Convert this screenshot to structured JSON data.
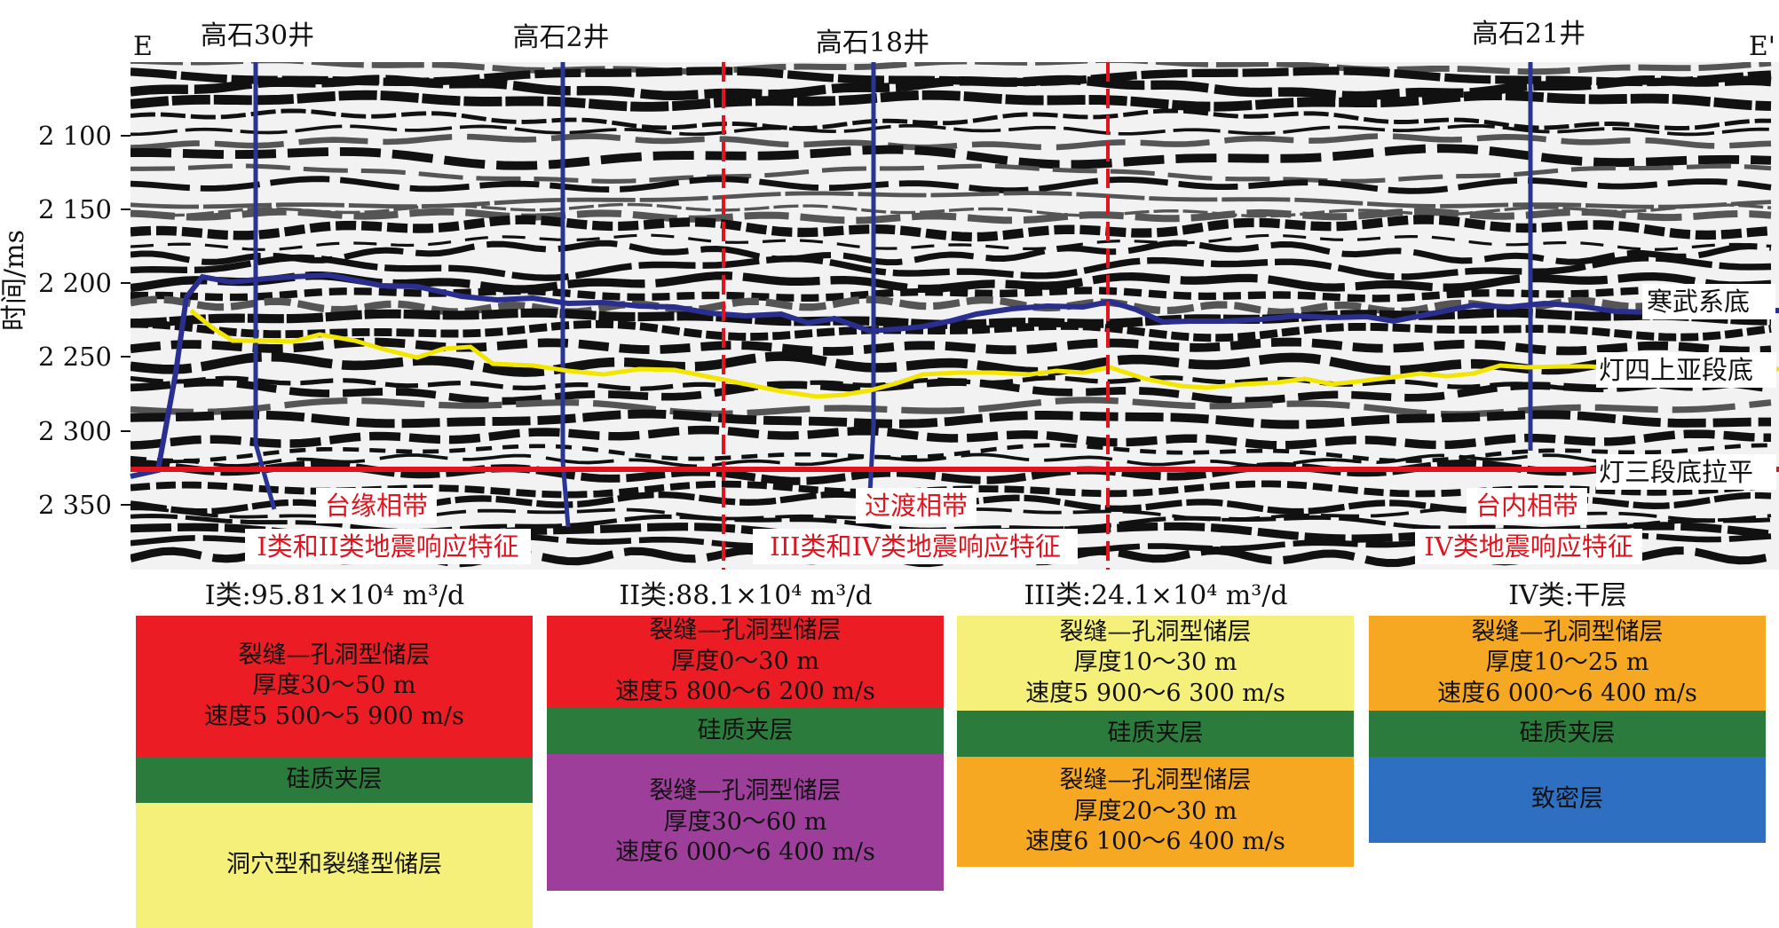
{
  "section": {
    "left_label": "E",
    "right_label": "E'",
    "y_axis_label": "时间/ms",
    "y_ticks": [
      "2 100",
      "2 150",
      "2 200",
      "2 250",
      "2 300",
      "2 350"
    ],
    "wells": [
      {
        "name": "高石30井"
      },
      {
        "name": "高石2井"
      },
      {
        "name": "高石18井"
      },
      {
        "name": "高石21井"
      }
    ],
    "horizons": [
      {
        "name": "寒武系底",
        "color": "#2a2f8f"
      },
      {
        "name": "灯四上亚段底",
        "color": "#f2e600"
      },
      {
        "name": "灯三段底拉平",
        "color": "#e0141e"
      }
    ],
    "zones": [
      {
        "line1": "台缘相带",
        "line2": "I类和II类地震响应特征"
      },
      {
        "line1": "过渡相带",
        "line2": "III类和IV类地震响应特征"
      },
      {
        "line1": "台内相带",
        "line2": "IV类地震响应特征"
      }
    ],
    "colors": {
      "well_line": "#2a3593",
      "zone_text": "#e0141e",
      "divider": "#e0141e"
    }
  },
  "types": [
    {
      "title": "I类:95.81×10⁴ m³/d",
      "blocks": [
        {
          "lines": [
            "裂缝—孔洞型储层",
            "厚度30～50 m",
            "速度5 500～5 900 m/s"
          ],
          "color": "#ec1c24"
        },
        {
          "lines": [
            "硅质夹层"
          ],
          "color": "#2b7b3c"
        },
        {
          "lines": [
            "洞穴型和裂缝型储层"
          ],
          "color": "#f4f07a"
        }
      ]
    },
    {
      "title": "II类:88.1×10⁴ m³/d",
      "blocks": [
        {
          "lines": [
            "裂缝—孔洞型储层",
            "厚度0～30 m",
            "速度5 800～6 200 m/s"
          ],
          "color": "#ec1c24"
        },
        {
          "lines": [
            "硅质夹层"
          ],
          "color": "#2b7b3c"
        },
        {
          "lines": [
            "裂缝—孔洞型储层",
            "厚度30～60 m",
            "速度6 000～6 400 m/s"
          ],
          "color": "#9d3e9b"
        }
      ]
    },
    {
      "title": "III类:24.1×10⁴ m³/d",
      "blocks": [
        {
          "lines": [
            "裂缝—孔洞型储层",
            "厚度10～30 m",
            "速度5 900～6 300 m/s"
          ],
          "color": "#f4f07a"
        },
        {
          "lines": [
            "硅质夹层"
          ],
          "color": "#2b7b3c"
        },
        {
          "lines": [
            "裂缝—孔洞型储层",
            "厚度20～30 m",
            "速度6 100～6 400 m/s"
          ],
          "color": "#f7a823"
        }
      ]
    },
    {
      "title": "IV类:干层",
      "blocks": [
        {
          "lines": [
            "裂缝—孔洞型储层",
            "厚度10～25 m",
            "速度6 000～6 400 m/s"
          ],
          "color": "#f7a823"
        },
        {
          "lines": [
            "硅质夹层"
          ],
          "color": "#2b7b3c"
        },
        {
          "lines": [
            "致密层"
          ],
          "color": "#2e6fc1"
        }
      ]
    }
  ]
}
